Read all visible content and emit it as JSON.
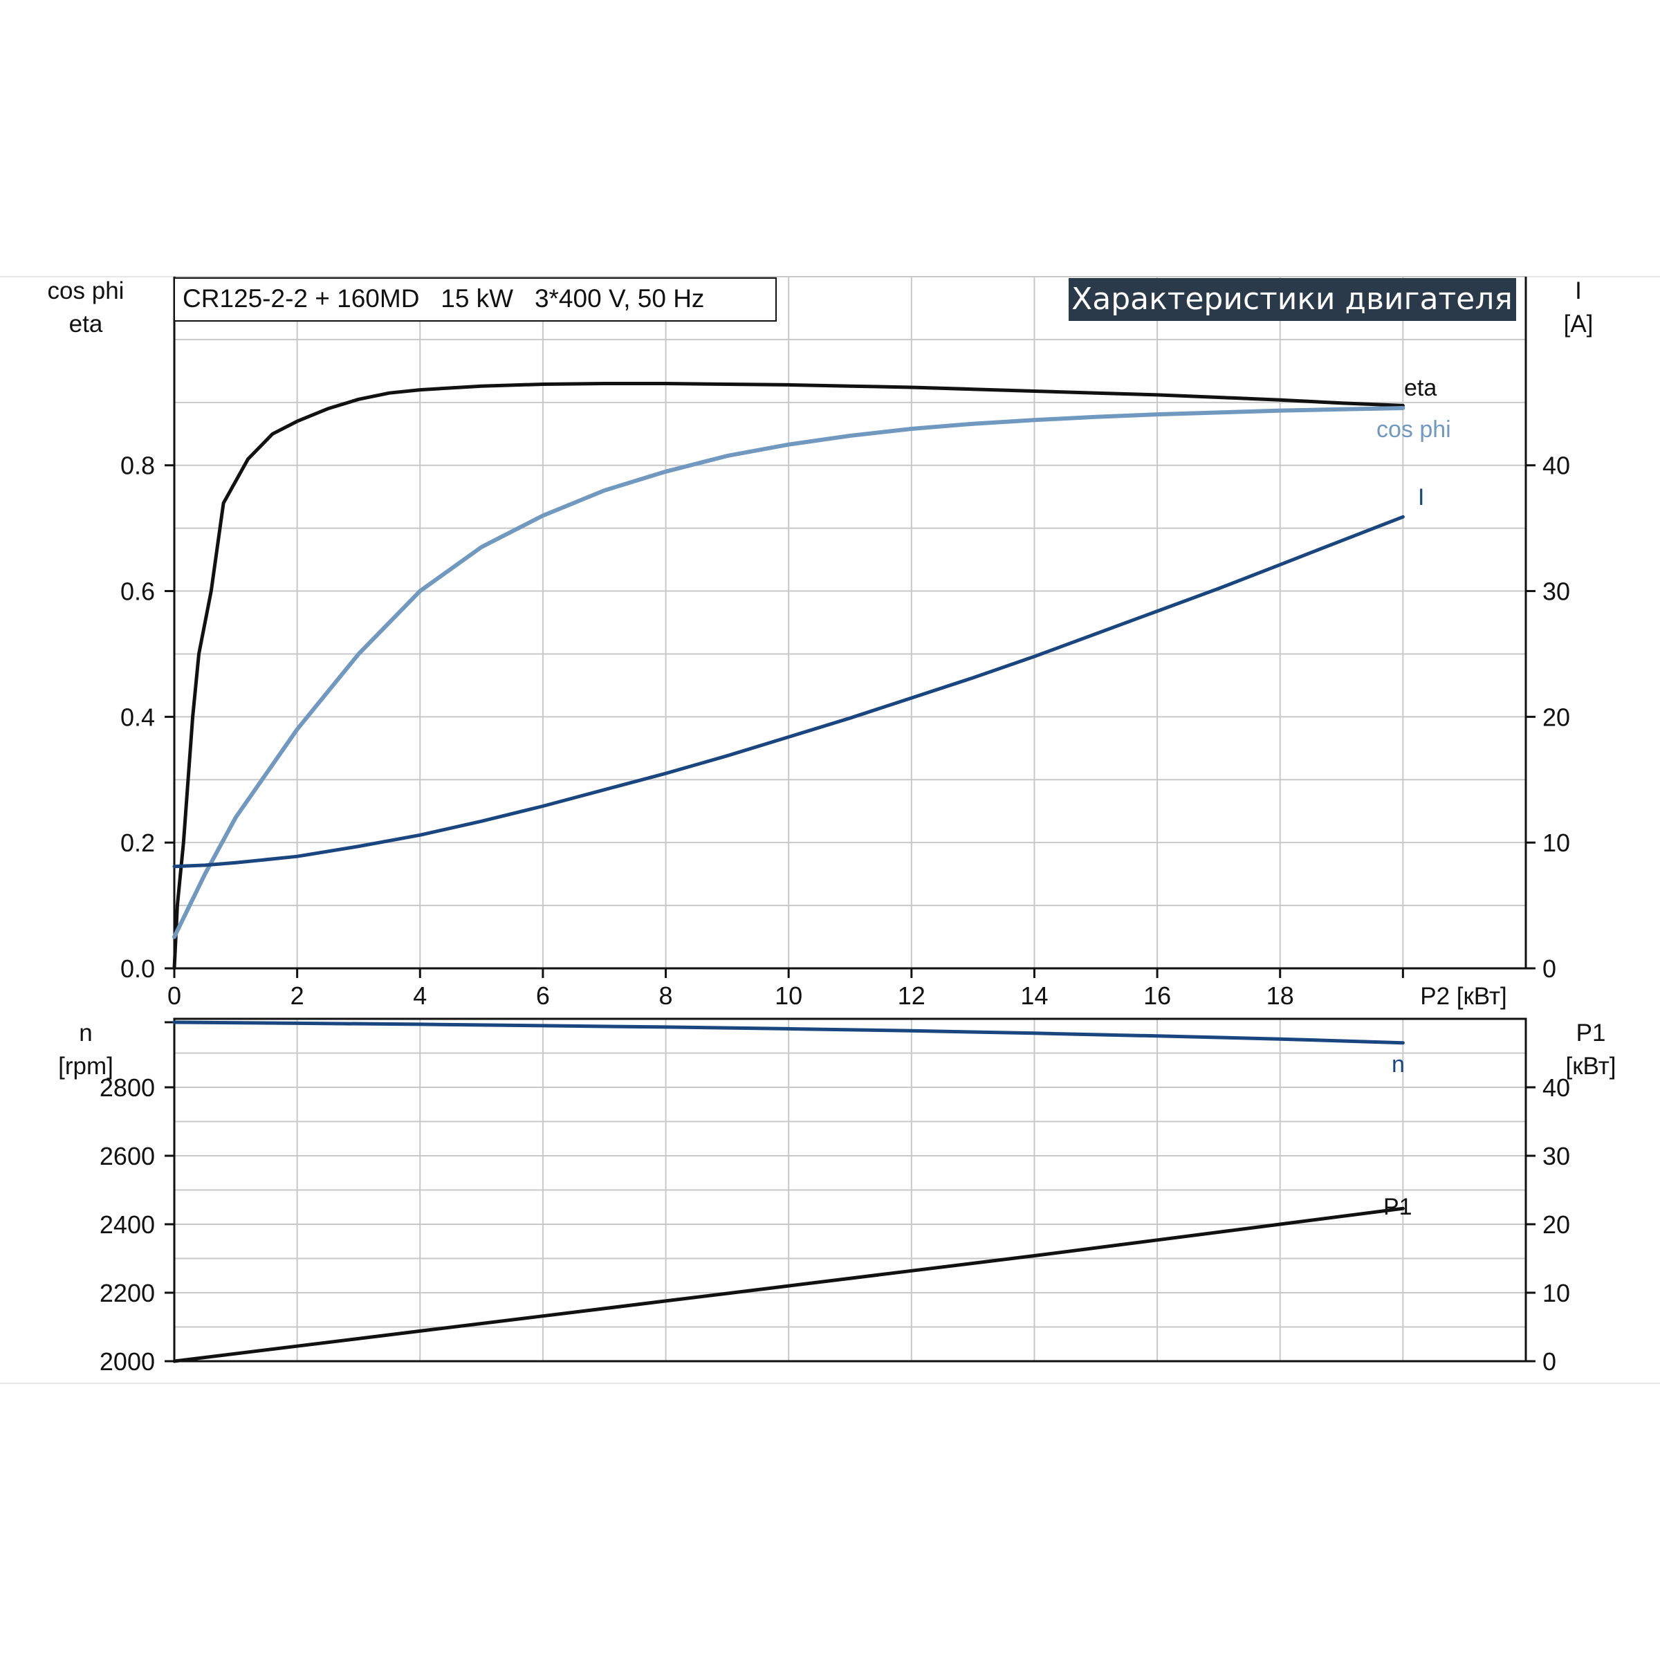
{
  "info_label": "CR125-2-2 + 160MD   15 kW   3*400 V, 50 Hz",
  "banner_title": "Характеристики двигателя",
  "colors": {
    "eta": "#111111",
    "cos_phi": "#7199bf",
    "current": "#1a4680",
    "speed": "#1a4680",
    "p1": "#111111",
    "grid": "#c8c8c8",
    "banner_bg": "#2b3a4a"
  },
  "chart_data": [
    {
      "type": "line",
      "panel": "upper",
      "left_axis_title": [
        "cos phi",
        "eta"
      ],
      "right_axis_title": [
        "I",
        "[A]"
      ],
      "x_axis_label": "P2 [кВт]",
      "xlim": [
        0,
        22
      ],
      "ylim_left": [
        0,
        1.1
      ],
      "ylim_right": [
        0,
        55
      ],
      "x_ticks": [
        "0",
        "2",
        "4",
        "6",
        "8",
        "10",
        "12",
        "14",
        "16",
        "18"
      ],
      "y_ticks_left": [
        "0.0",
        "0.2",
        "0.4",
        "0.6",
        "0.8"
      ],
      "y_ticks_right": [
        "0",
        "10",
        "20",
        "30",
        "40"
      ],
      "grid": true,
      "series": [
        {
          "name": "eta",
          "axis": "left",
          "color_key": "eta",
          "x": [
            0,
            0.05,
            0.15,
            0.3,
            0.4,
            0.6,
            0.8,
            1.2,
            1.6,
            2,
            2.5,
            3,
            3.5,
            4,
            5,
            6,
            7,
            8,
            9,
            10,
            11,
            12,
            13,
            14,
            15,
            16,
            17,
            18,
            19,
            20
          ],
          "y": [
            0.0,
            0.1,
            0.2,
            0.4,
            0.5,
            0.6,
            0.74,
            0.81,
            0.85,
            0.87,
            0.89,
            0.905,
            0.915,
            0.92,
            0.926,
            0.929,
            0.93,
            0.93,
            0.929,
            0.928,
            0.926,
            0.924,
            0.921,
            0.918,
            0.915,
            0.912,
            0.908,
            0.904,
            0.899,
            0.895
          ]
        },
        {
          "name": "cos phi",
          "axis": "left",
          "color_key": "cos_phi",
          "x": [
            0,
            0.5,
            1,
            1.5,
            2,
            2.5,
            3,
            3.5,
            4,
            5,
            6,
            7,
            8,
            9,
            10,
            11,
            12,
            13,
            14,
            15,
            16,
            17,
            18,
            19,
            20
          ],
          "y": [
            0.05,
            0.15,
            0.24,
            0.31,
            0.38,
            0.44,
            0.5,
            0.55,
            0.6,
            0.67,
            0.72,
            0.76,
            0.79,
            0.815,
            0.833,
            0.847,
            0.858,
            0.866,
            0.872,
            0.877,
            0.881,
            0.884,
            0.887,
            0.889,
            0.891
          ]
        },
        {
          "name": "I",
          "axis": "right",
          "color_key": "current",
          "x": [
            0,
            0.5,
            1,
            2,
            3,
            4,
            5,
            6,
            7,
            8,
            9,
            10,
            11,
            12,
            13,
            14,
            15,
            16,
            17,
            18,
            19,
            20
          ],
          "y": [
            8.1,
            8.2,
            8.4,
            8.9,
            9.7,
            10.6,
            11.7,
            12.9,
            14.2,
            15.5,
            16.9,
            18.4,
            19.9,
            21.5,
            23.1,
            24.8,
            26.6,
            28.4,
            30.2,
            32.1,
            34.0,
            35.9
          ]
        }
      ]
    },
    {
      "type": "line",
      "panel": "lower",
      "left_axis_title": [
        "n",
        "[rpm]"
      ],
      "right_axis_title": [
        "P1",
        "[кВт]"
      ],
      "xlim": [
        0,
        22
      ],
      "ylim_left": [
        2000,
        3000
      ],
      "ylim_right": [
        0,
        50
      ],
      "y_ticks_left": [
        "2000",
        "2200",
        "2400",
        "2600",
        "2800"
      ],
      "y_ticks_right": [
        "0",
        "10",
        "20",
        "30",
        "40"
      ],
      "grid": true,
      "series": [
        {
          "name": "n",
          "axis": "left",
          "color_key": "speed",
          "x": [
            0,
            2,
            4,
            6,
            8,
            10,
            12,
            14,
            16,
            18,
            20
          ],
          "y": [
            2990,
            2987,
            2984,
            2980,
            2976,
            2971,
            2965,
            2958,
            2950,
            2941,
            2930
          ]
        },
        {
          "name": "P1",
          "axis": "right",
          "color_key": "p1",
          "x": [
            0,
            2,
            4,
            6,
            8,
            10,
            12,
            14,
            16,
            18,
            20
          ],
          "y": [
            0.0,
            2.2,
            4.4,
            6.6,
            8.8,
            11.0,
            13.2,
            15.4,
            17.7,
            20.0,
            22.3
          ]
        }
      ]
    }
  ]
}
